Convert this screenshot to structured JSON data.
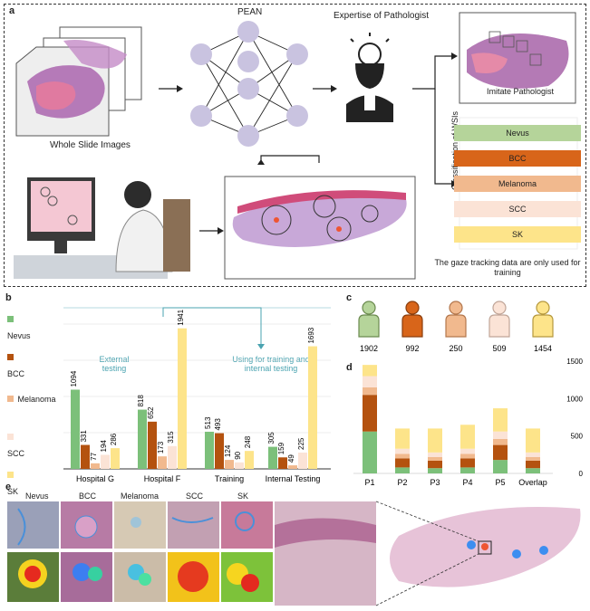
{
  "panel_a": {
    "letter": "a",
    "wsi_label": "Whole Slide Images",
    "network_label": "PEAN",
    "expertise_label": "Expertise of Pathologist",
    "imitate_label": "Imitate Pathologist",
    "classification_axis": "Classification of WSIs",
    "classes": [
      {
        "name": "Nevus",
        "color": "#b5d49a"
      },
      {
        "name": "BCC",
        "color": "#d8651a"
      },
      {
        "name": "Melanoma",
        "color": "#f1b98e"
      },
      {
        "name": "SCC",
        "color": "#fbe3d6"
      },
      {
        "name": "SK",
        "color": "#fde48a"
      }
    ],
    "gaze_note": "The gaze tracking data are only used for training"
  },
  "panel_b": {
    "letter": "b",
    "legend": [
      "Nevus",
      "BCC",
      "Melanoma",
      "SCC",
      "SK"
    ],
    "annotation_external": "External testing",
    "annotation_internal": "Using for training and internal testing"
  },
  "panel_c": {
    "letter": "c",
    "counts": [
      "1902",
      "992",
      "250",
      "509",
      "1454"
    ]
  },
  "panel_d": {
    "letter": "d"
  },
  "panel_e": {
    "letter": "e",
    "labels": [
      "Nevus",
      "BCC",
      "Melanoma",
      "SCC",
      "SK"
    ]
  },
  "chart_data": [
    {
      "type": "bar",
      "id": "b",
      "categories": [
        "Hospital G",
        "Hospital F",
        "Training",
        "Internal Testing"
      ],
      "series": [
        {
          "name": "Nevus",
          "values": [
            1094,
            818,
            513,
            305
          ]
        },
        {
          "name": "BCC",
          "values": [
            331,
            652,
            493,
            159
          ]
        },
        {
          "name": "Melanoma",
          "values": [
            77,
            173,
            124,
            49
          ]
        },
        {
          "name": "SCC",
          "values": [
            194,
            315,
            90,
            225
          ]
        },
        {
          "name": "SK",
          "values": [
            286,
            1941,
            248,
            1693
          ]
        }
      ],
      "value_labels": [
        [
          "1094",
          "331",
          "77",
          "194",
          "286"
        ],
        [
          "818",
          "652",
          "173",
          "315",
          "1941"
        ],
        [
          "513",
          "493",
          "124",
          "90",
          "248"
        ],
        [
          "305",
          "159",
          "49",
          "225",
          "1693"
        ]
      ],
      "ylim": [
        0,
        2000
      ]
    },
    {
      "type": "bar",
      "id": "d",
      "stacked": true,
      "categories": [
        "P1",
        "P2",
        "P3",
        "P4",
        "P5",
        "Overlap"
      ],
      "series": [
        {
          "name": "Nevus",
          "values": [
            560,
            80,
            70,
            80,
            180,
            70
          ]
        },
        {
          "name": "BCC",
          "values": [
            490,
            120,
            100,
            120,
            200,
            100
          ]
        },
        {
          "name": "Melanoma",
          "values": [
            100,
            60,
            50,
            60,
            80,
            50
          ]
        },
        {
          "name": "SCC",
          "values": [
            150,
            70,
            60,
            70,
            100,
            60
          ]
        },
        {
          "name": "SK",
          "values": [
            150,
            270,
            320,
            320,
            310,
            320
          ]
        }
      ],
      "yticks": [
        "0",
        "500",
        "1000",
        "1500"
      ],
      "ylim": [
        0,
        1500
      ]
    }
  ]
}
